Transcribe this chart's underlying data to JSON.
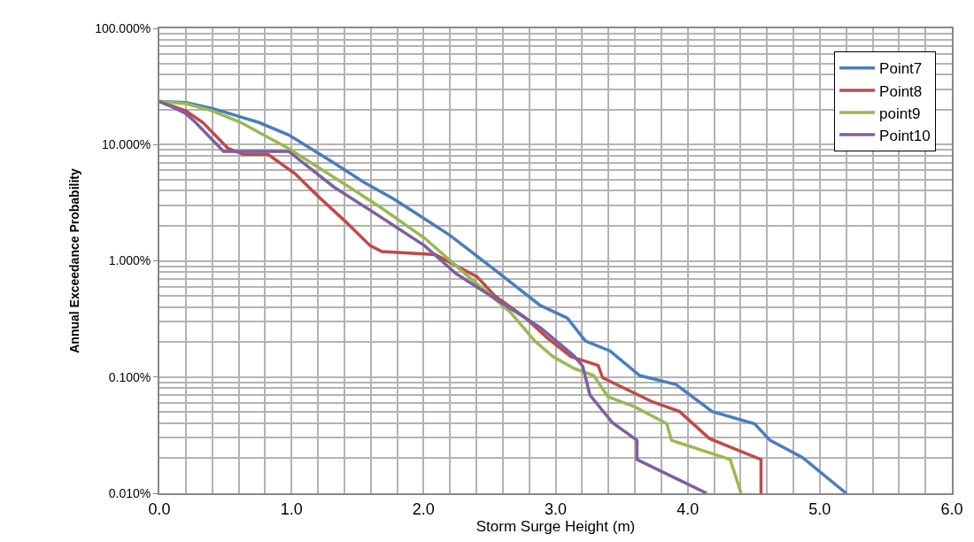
{
  "chart_data": {
    "type": "line",
    "xlabel": "Storm Surge Height (m)",
    "ylabel": "Annual Exceedance Probability",
    "log": "y",
    "grid": true,
    "legend": "top right",
    "marker": "none",
    "line_style": "solid",
    "xlim": [
      0,
      6
    ],
    "xticks": [
      {
        "value": 0,
        "label": "0.0"
      },
      {
        "value": 1,
        "label": "1.0"
      },
      {
        "value": 2,
        "label": "2.0"
      },
      {
        "value": 3,
        "label": "3.0"
      },
      {
        "value": 4,
        "label": "4.0"
      },
      {
        "value": 5,
        "label": "5.0"
      },
      {
        "value": 6,
        "label": "6.0"
      }
    ],
    "ylim": [
      0.01,
      100
    ],
    "yticks": [
      {
        "value": 0.01,
        "label": "0.010%"
      },
      {
        "value": 0.1,
        "label": "0.100%"
      },
      {
        "value": 1,
        "label": "1.000%"
      },
      {
        "value": 10,
        "label": "10.000%"
      },
      {
        "value": 100,
        "label": "100.000%"
      }
    ],
    "series": [
      {
        "name": "Point7",
        "color": "#4a7ebb",
        "x": [
          0,
          0.2,
          0.4,
          0.6,
          0.753,
          0.979,
          1.322,
          1.548,
          1.781,
          2.007,
          2.199,
          2.541,
          2.884,
          3.089,
          3.226,
          3.411,
          3.637,
          3.911,
          4.185,
          4.507,
          4.623,
          4.87,
          5.2
        ],
        "values": [
          23.5,
          23,
          20.5,
          17.5,
          15.5,
          12.1,
          6.95,
          4.74,
          3.37,
          2.3,
          1.66,
          0.835,
          0.413,
          0.322,
          0.204,
          0.168,
          0.103,
          0.0863,
          0.0506,
          0.0396,
          0.0286,
          0.0203,
          0.01
        ]
      },
      {
        "name": "Point8",
        "color": "#be4b48",
        "x": [
          0,
          0.2,
          0.329,
          0.521,
          0.637,
          0.822,
          1.027,
          1.205,
          1.411,
          1.596,
          1.685,
          2.089,
          2.404,
          2.541,
          2.774,
          2.932,
          3.116,
          3.322,
          3.356,
          3.733,
          3.938,
          4.164,
          4.555,
          4.555
        ],
        "values": [
          23.5,
          19.5,
          15.5,
          9.25,
          8.25,
          8.25,
          5.63,
          3.56,
          2.17,
          1.35,
          1.2,
          1.13,
          0.731,
          0.499,
          0.322,
          0.22,
          0.15,
          0.126,
          0.0986,
          0.0612,
          0.0506,
          0.0296,
          0.0195,
          0.01
        ]
      },
      {
        "name": "point9",
        "color": "#98b954",
        "x": [
          0,
          0.2,
          0.4,
          0.616,
          0.979,
          1.322,
          1.664,
          2.007,
          2.315,
          2.658,
          2.842,
          2.979,
          3.137,
          3.288,
          3.397,
          3.596,
          3.842,
          3.877,
          4.322,
          4.404
        ],
        "values": [
          23.5,
          22.5,
          19.5,
          15.5,
          9.25,
          5.22,
          2.94,
          1.57,
          0.774,
          0.361,
          0.204,
          0.15,
          0.119,
          0.103,
          0.0675,
          0.0557,
          0.0396,
          0.0286,
          0.0195,
          0.01
        ]
      },
      {
        "name": "Point10",
        "color": "#7d60a0",
        "x": [
          0,
          0.1,
          0.2,
          0.274,
          0.486,
          0.979,
          1.322,
          1.664,
          2.007,
          2.247,
          2.658,
          2.884,
          3.137,
          3.205,
          3.26,
          3.432,
          3.616,
          3.616,
          4.144
        ],
        "values": [
          23.5,
          21,
          18.5,
          15.5,
          8.73,
          8.73,
          4.31,
          2.43,
          1.35,
          0.774,
          0.39,
          0.266,
          0.153,
          0.124,
          0.07,
          0.0403,
          0.0286,
          0.0195,
          0.01
        ]
      }
    ]
  }
}
